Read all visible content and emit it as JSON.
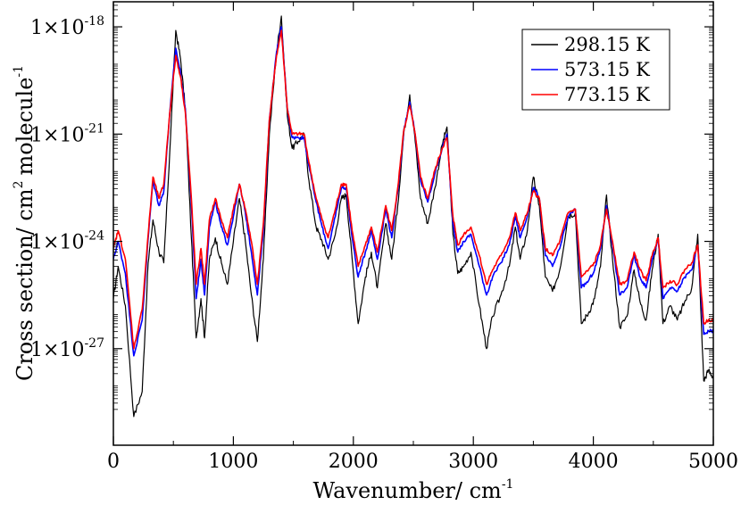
{
  "chart_data": {
    "type": "line",
    "xlabel": "Wavenumber/ cm",
    "xlabel_sup": "-1",
    "ylabel": "Cross section/ cm",
    "ylabel_sup1": "2",
    "ylabel_mid": "molecule",
    "ylabel_sup2": "-1",
    "xlim": [
      0,
      5000
    ],
    "ylim_log10": [
      -29.7,
      -17.3
    ],
    "x_ticks": [
      {
        "value": 0,
        "label": "0"
      },
      {
        "value": 1000,
        "label": "1000"
      },
      {
        "value": 2000,
        "label": "2000"
      },
      {
        "value": 3000,
        "label": "3000"
      },
      {
        "value": 4000,
        "label": "4000"
      },
      {
        "value": 5000,
        "label": "5000"
      }
    ],
    "y_ticks": [
      {
        "exp": -18,
        "base": "1×10",
        "sup": "-18"
      },
      {
        "exp": -21,
        "base": "1×10",
        "sup": "-21"
      },
      {
        "exp": -24,
        "base": "1×10",
        "sup": "-24"
      },
      {
        "exp": -27,
        "base": "1×10",
        "sup": "-27"
      }
    ],
    "legend_position": "top-right",
    "series": [
      {
        "name": "298.15 K",
        "color": "#000000",
        "points": [
          [
            0,
            -25.6
          ],
          [
            40,
            -24.7
          ],
          [
            100,
            -25.8
          ],
          [
            170,
            -28.9
          ],
          [
            240,
            -28.2
          ],
          [
            290,
            -24.6
          ],
          [
            330,
            -23.4
          ],
          [
            380,
            -24.3
          ],
          [
            420,
            -24.6
          ],
          [
            470,
            -21.5
          ],
          [
            520,
            -18.1
          ],
          [
            560,
            -18.9
          ],
          [
            600,
            -20.3
          ],
          [
            650,
            -23.9
          ],
          [
            690,
            -26.7
          ],
          [
            730,
            -25.6
          ],
          [
            760,
            -26.7
          ],
          [
            800,
            -24.5
          ],
          [
            850,
            -23.9
          ],
          [
            900,
            -24.6
          ],
          [
            950,
            -25.2
          ],
          [
            1000,
            -24.0
          ],
          [
            1050,
            -22.8
          ],
          [
            1100,
            -24.0
          ],
          [
            1150,
            -25.5
          ],
          [
            1200,
            -26.8
          ],
          [
            1250,
            -24.5
          ],
          [
            1300,
            -21.0
          ],
          [
            1360,
            -18.7
          ],
          [
            1400,
            -17.7
          ],
          [
            1450,
            -20.5
          ],
          [
            1490,
            -21.4
          ],
          [
            1540,
            -21.2
          ],
          [
            1590,
            -21.0
          ],
          [
            1630,
            -22.3
          ],
          [
            1690,
            -23.6
          ],
          [
            1740,
            -24.0
          ],
          [
            1790,
            -24.5
          ],
          [
            1850,
            -23.8
          ],
          [
            1900,
            -22.8
          ],
          [
            1940,
            -22.7
          ],
          [
            1990,
            -24.5
          ],
          [
            2040,
            -26.3
          ],
          [
            2100,
            -25.0
          ],
          [
            2150,
            -24.3
          ],
          [
            2200,
            -25.3
          ],
          [
            2270,
            -23.5
          ],
          [
            2320,
            -24.5
          ],
          [
            2370,
            -23.0
          ],
          [
            2420,
            -21.0
          ],
          [
            2470,
            -19.9
          ],
          [
            2510,
            -21.0
          ],
          [
            2560,
            -22.8
          ],
          [
            2620,
            -23.5
          ],
          [
            2680,
            -22.5
          ],
          [
            2740,
            -21.3
          ],
          [
            2780,
            -20.8
          ],
          [
            2830,
            -23.8
          ],
          [
            2870,
            -24.9
          ],
          [
            2920,
            -24.7
          ],
          [
            2980,
            -24.3
          ],
          [
            3050,
            -25.8
          ],
          [
            3110,
            -27.0
          ],
          [
            3160,
            -26.1
          ],
          [
            3230,
            -25.5
          ],
          [
            3300,
            -24.7
          ],
          [
            3350,
            -23.6
          ],
          [
            3390,
            -24.5
          ],
          [
            3450,
            -23.7
          ],
          [
            3500,
            -22.2
          ],
          [
            3550,
            -23.0
          ],
          [
            3600,
            -25.0
          ],
          [
            3660,
            -25.4
          ],
          [
            3720,
            -24.8
          ],
          [
            3790,
            -23.3
          ],
          [
            3850,
            -23.2
          ],
          [
            3900,
            -26.3
          ],
          [
            3960,
            -26.0
          ],
          [
            4010,
            -25.6
          ],
          [
            4060,
            -24.7
          ],
          [
            4110,
            -22.7
          ],
          [
            4160,
            -24.5
          ],
          [
            4220,
            -26.4
          ],
          [
            4280,
            -26.1
          ],
          [
            4340,
            -24.8
          ],
          [
            4390,
            -25.7
          ],
          [
            4440,
            -26.2
          ],
          [
            4490,
            -24.8
          ],
          [
            4540,
            -23.8
          ],
          [
            4580,
            -26.3
          ],
          [
            4640,
            -25.8
          ],
          [
            4700,
            -26.2
          ],
          [
            4760,
            -25.7
          ],
          [
            4820,
            -25.3
          ],
          [
            4870,
            -23.8
          ],
          [
            4920,
            -27.9
          ],
          [
            4960,
            -27.6
          ],
          [
            5000,
            -27.8
          ]
        ]
      },
      {
        "name": "573.15 K",
        "color": "#0000ff",
        "points": [
          [
            0,
            -24.5
          ],
          [
            40,
            -24.0
          ],
          [
            100,
            -24.9
          ],
          [
            170,
            -27.2
          ],
          [
            240,
            -26.2
          ],
          [
            290,
            -23.9
          ],
          [
            330,
            -22.3
          ],
          [
            380,
            -23.0
          ],
          [
            420,
            -22.6
          ],
          [
            470,
            -20.4
          ],
          [
            520,
            -18.6
          ],
          [
            560,
            -19.3
          ],
          [
            600,
            -20.3
          ],
          [
            650,
            -23.0
          ],
          [
            690,
            -25.6
          ],
          [
            730,
            -24.5
          ],
          [
            760,
            -25.5
          ],
          [
            800,
            -23.6
          ],
          [
            850,
            -22.9
          ],
          [
            900,
            -23.6
          ],
          [
            950,
            -24.1
          ],
          [
            1000,
            -23.3
          ],
          [
            1050,
            -22.4
          ],
          [
            1100,
            -23.2
          ],
          [
            1150,
            -24.3
          ],
          [
            1200,
            -25.5
          ],
          [
            1250,
            -23.7
          ],
          [
            1300,
            -20.6
          ],
          [
            1360,
            -18.7
          ],
          [
            1400,
            -18.0
          ],
          [
            1450,
            -20.3
          ],
          [
            1490,
            -21.1
          ],
          [
            1540,
            -21.1
          ],
          [
            1590,
            -21.1
          ],
          [
            1630,
            -21.9
          ],
          [
            1690,
            -22.9
          ],
          [
            1740,
            -23.6
          ],
          [
            1790,
            -24.2
          ],
          [
            1850,
            -23.3
          ],
          [
            1900,
            -22.5
          ],
          [
            1940,
            -22.5
          ],
          [
            1990,
            -23.9
          ],
          [
            2040,
            -25.0
          ],
          [
            2100,
            -24.3
          ],
          [
            2150,
            -23.7
          ],
          [
            2200,
            -24.5
          ],
          [
            2270,
            -23.1
          ],
          [
            2320,
            -23.9
          ],
          [
            2370,
            -22.6
          ],
          [
            2420,
            -20.9
          ],
          [
            2470,
            -20.1
          ],
          [
            2510,
            -20.9
          ],
          [
            2560,
            -22.3
          ],
          [
            2620,
            -22.9
          ],
          [
            2680,
            -22.1
          ],
          [
            2740,
            -21.4
          ],
          [
            2780,
            -21.0
          ],
          [
            2830,
            -23.5
          ],
          [
            2870,
            -24.3
          ],
          [
            2920,
            -24.0
          ],
          [
            2980,
            -23.8
          ],
          [
            3050,
            -24.7
          ],
          [
            3110,
            -25.5
          ],
          [
            3160,
            -25.0
          ],
          [
            3230,
            -24.6
          ],
          [
            3300,
            -24.1
          ],
          [
            3350,
            -23.3
          ],
          [
            3390,
            -23.9
          ],
          [
            3450,
            -23.3
          ],
          [
            3500,
            -22.5
          ],
          [
            3550,
            -22.8
          ],
          [
            3600,
            -24.4
          ],
          [
            3660,
            -24.7
          ],
          [
            3720,
            -24.2
          ],
          [
            3790,
            -23.3
          ],
          [
            3850,
            -23.1
          ],
          [
            3900,
            -25.3
          ],
          [
            3960,
            -25.1
          ],
          [
            4010,
            -24.8
          ],
          [
            4060,
            -24.2
          ],
          [
            4110,
            -23.0
          ],
          [
            4160,
            -24.1
          ],
          [
            4220,
            -25.5
          ],
          [
            4280,
            -25.3
          ],
          [
            4340,
            -24.4
          ],
          [
            4390,
            -25.0
          ],
          [
            4440,
            -25.3
          ],
          [
            4490,
            -24.5
          ],
          [
            4540,
            -23.9
          ],
          [
            4580,
            -25.6
          ],
          [
            4640,
            -25.3
          ],
          [
            4700,
            -25.4
          ],
          [
            4760,
            -25.0
          ],
          [
            4820,
            -24.8
          ],
          [
            4870,
            -24.1
          ],
          [
            4920,
            -26.6
          ],
          [
            4960,
            -26.5
          ],
          [
            5000,
            -26.5
          ]
        ]
      },
      {
        "name": "773.15 K",
        "color": "#ff0000",
        "points": [
          [
            0,
            -24.2
          ],
          [
            40,
            -23.7
          ],
          [
            100,
            -24.5
          ],
          [
            170,
            -27.0
          ],
          [
            240,
            -25.9
          ],
          [
            290,
            -23.8
          ],
          [
            330,
            -22.2
          ],
          [
            380,
            -22.8
          ],
          [
            420,
            -22.4
          ],
          [
            470,
            -20.4
          ],
          [
            520,
            -18.8
          ],
          [
            560,
            -19.4
          ],
          [
            600,
            -20.4
          ],
          [
            650,
            -22.8
          ],
          [
            690,
            -25.2
          ],
          [
            730,
            -24.2
          ],
          [
            760,
            -25.2
          ],
          [
            800,
            -23.4
          ],
          [
            850,
            -22.8
          ],
          [
            900,
            -23.4
          ],
          [
            950,
            -23.9
          ],
          [
            1000,
            -23.1
          ],
          [
            1050,
            -22.4
          ],
          [
            1100,
            -23.1
          ],
          [
            1150,
            -24.0
          ],
          [
            1200,
            -25.2
          ],
          [
            1250,
            -23.5
          ],
          [
            1300,
            -20.6
          ],
          [
            1360,
            -18.8
          ],
          [
            1400,
            -18.1
          ],
          [
            1450,
            -20.3
          ],
          [
            1490,
            -21.0
          ],
          [
            1540,
            -21.0
          ],
          [
            1590,
            -21.0
          ],
          [
            1630,
            -21.8
          ],
          [
            1690,
            -22.8
          ],
          [
            1740,
            -23.4
          ],
          [
            1790,
            -23.9
          ],
          [
            1850,
            -23.1
          ],
          [
            1900,
            -22.4
          ],
          [
            1940,
            -22.4
          ],
          [
            1990,
            -23.7
          ],
          [
            2040,
            -24.7
          ],
          [
            2100,
            -24.1
          ],
          [
            2150,
            -23.6
          ],
          [
            2200,
            -24.3
          ],
          [
            2270,
            -23.0
          ],
          [
            2320,
            -23.7
          ],
          [
            2370,
            -22.5
          ],
          [
            2420,
            -20.9
          ],
          [
            2470,
            -20.2
          ],
          [
            2510,
            -20.9
          ],
          [
            2560,
            -22.2
          ],
          [
            2620,
            -22.8
          ],
          [
            2680,
            -22.0
          ],
          [
            2740,
            -21.4
          ],
          [
            2780,
            -21.1
          ],
          [
            2830,
            -23.3
          ],
          [
            2870,
            -24.1
          ],
          [
            2920,
            -23.8
          ],
          [
            2980,
            -23.6
          ],
          [
            3050,
            -24.4
          ],
          [
            3110,
            -25.2
          ],
          [
            3160,
            -24.8
          ],
          [
            3230,
            -24.4
          ],
          [
            3300,
            -23.9
          ],
          [
            3350,
            -23.2
          ],
          [
            3390,
            -23.7
          ],
          [
            3450,
            -23.2
          ],
          [
            3500,
            -22.6
          ],
          [
            3550,
            -22.8
          ],
          [
            3600,
            -24.2
          ],
          [
            3660,
            -24.4
          ],
          [
            3720,
            -24.0
          ],
          [
            3790,
            -23.2
          ],
          [
            3850,
            -23.1
          ],
          [
            3900,
            -25.0
          ],
          [
            3960,
            -24.8
          ],
          [
            4010,
            -24.6
          ],
          [
            4060,
            -24.1
          ],
          [
            4110,
            -23.1
          ],
          [
            4160,
            -24.0
          ],
          [
            4220,
            -25.2
          ],
          [
            4280,
            -25.1
          ],
          [
            4340,
            -24.3
          ],
          [
            4390,
            -24.8
          ],
          [
            4440,
            -25.1
          ],
          [
            4490,
            -24.4
          ],
          [
            4540,
            -23.9
          ],
          [
            4580,
            -25.3
          ],
          [
            4640,
            -25.1
          ],
          [
            4700,
            -25.2
          ],
          [
            4760,
            -24.8
          ],
          [
            4820,
            -24.6
          ],
          [
            4870,
            -24.1
          ],
          [
            4920,
            -26.3
          ],
          [
            4960,
            -26.2
          ],
          [
            5000,
            -26.2
          ]
        ]
      }
    ]
  }
}
